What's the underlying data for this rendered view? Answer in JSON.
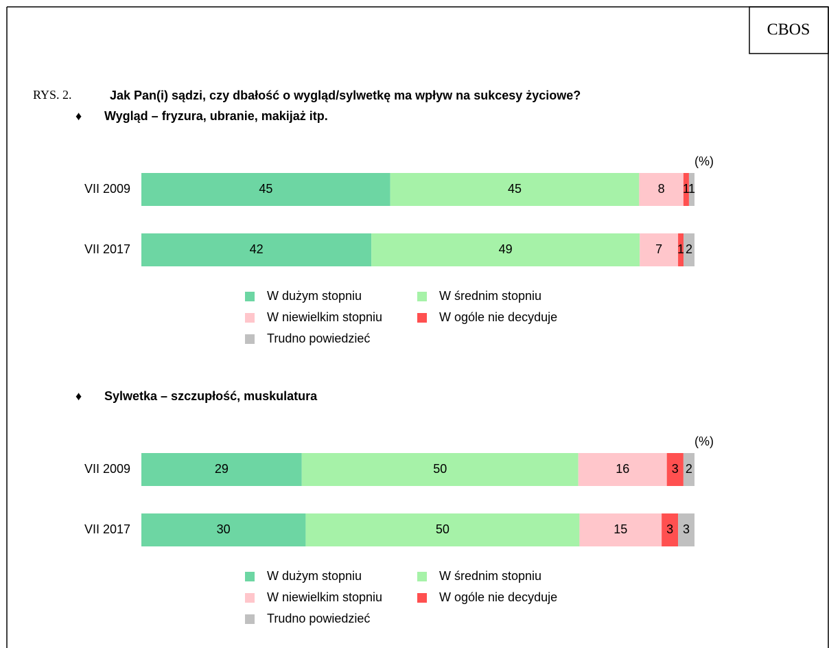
{
  "header": {
    "logo": "CBOS",
    "label": "RYS. 2.",
    "title": "Jak Pan(i) sądzi, czy dbałość o wygląd/sylwetkę ma wpływ na sukcesy życiowe?"
  },
  "chart_data": [
    {
      "type": "bar",
      "orientation": "horizontal",
      "stacked": true,
      "bullet": "♦",
      "title": "Wygląd – fryzura, ubranie, makijaż itp.",
      "unit": "(%)",
      "categories": [
        "VII 2009",
        "VII 2017"
      ],
      "series": [
        {
          "name": "W dużym stopniu",
          "color": "#6dd6a3",
          "values": [
            45,
            42
          ]
        },
        {
          "name": "W średnim stopniu",
          "color": "#a6f2a8",
          "values": [
            45,
            49
          ]
        },
        {
          "name": "W niewielkim stopniu",
          "color": "#ffc6cb",
          "values": [
            8,
            7
          ]
        },
        {
          "name": "W ogóle nie decyduje",
          "color": "#ff5050",
          "values": [
            1,
            1
          ]
        },
        {
          "name": "Trudno powiedzieć",
          "color": "#c0c0c0",
          "values": [
            1,
            2
          ]
        }
      ]
    },
    {
      "type": "bar",
      "orientation": "horizontal",
      "stacked": true,
      "bullet": "♦",
      "title": "Sylwetka – szczupłość, muskulatura",
      "unit": "(%)",
      "categories": [
        "VII 2009",
        "VII 2017"
      ],
      "series": [
        {
          "name": "W dużym stopniu",
          "color": "#6dd6a3",
          "values": [
            29,
            30
          ]
        },
        {
          "name": "W średnim stopniu",
          "color": "#a6f2a8",
          "values": [
            50,
            50
          ]
        },
        {
          "name": "W niewielkim stopniu",
          "color": "#ffc6cb",
          "values": [
            16,
            15
          ]
        },
        {
          "name": "W ogóle nie decyduje",
          "color": "#ff5050",
          "values": [
            3,
            3
          ]
        },
        {
          "name": "Trudno powiedzieć",
          "color": "#c0c0c0",
          "values": [
            2,
            3
          ]
        }
      ]
    }
  ]
}
